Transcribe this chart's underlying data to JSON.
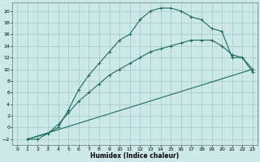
{
  "xlabel": "Humidex (Indice chaleur)",
  "ylabel": "",
  "bg_color": "#cce8e8",
  "grid_color": "#aacccc",
  "line_color": "#1e6b5e",
  "xlim": [
    -0.5,
    23.5
  ],
  "ylim": [
    -3,
    21.5
  ],
  "xticks": [
    0,
    1,
    2,
    3,
    4,
    5,
    6,
    7,
    8,
    9,
    10,
    11,
    12,
    13,
    14,
    15,
    16,
    17,
    18,
    19,
    20,
    21,
    22,
    23
  ],
  "yticks": [
    -2,
    0,
    2,
    4,
    6,
    8,
    10,
    12,
    14,
    16,
    18,
    20
  ],
  "curve1_x": [
    1,
    2,
    3,
    4,
    5,
    6,
    7,
    8,
    9,
    10,
    11,
    12,
    13,
    14,
    15,
    16,
    17,
    18,
    19,
    20,
    21,
    22,
    23
  ],
  "curve1_y": [
    -2,
    -2,
    -1,
    0,
    3,
    6.5,
    9,
    11,
    13,
    15,
    16,
    18.5,
    20,
    20.5,
    20.5,
    20,
    19,
    18.5,
    17,
    16.5,
    12,
    12,
    9.5
  ],
  "curve2_x": [
    1,
    3,
    4,
    5,
    6,
    7,
    8,
    9,
    10,
    11,
    12,
    13,
    14,
    15,
    16,
    17,
    18,
    19,
    20,
    21,
    22,
    23
  ],
  "curve2_y": [
    -2,
    -1,
    0.5,
    2.5,
    4.5,
    6,
    7.5,
    9,
    10,
    11,
    12,
    13,
    13.5,
    14,
    14.5,
    15,
    15,
    15,
    14,
    12.5,
    12,
    10
  ],
  "curve3_x": [
    1,
    23
  ],
  "curve3_y": [
    -2,
    10
  ]
}
